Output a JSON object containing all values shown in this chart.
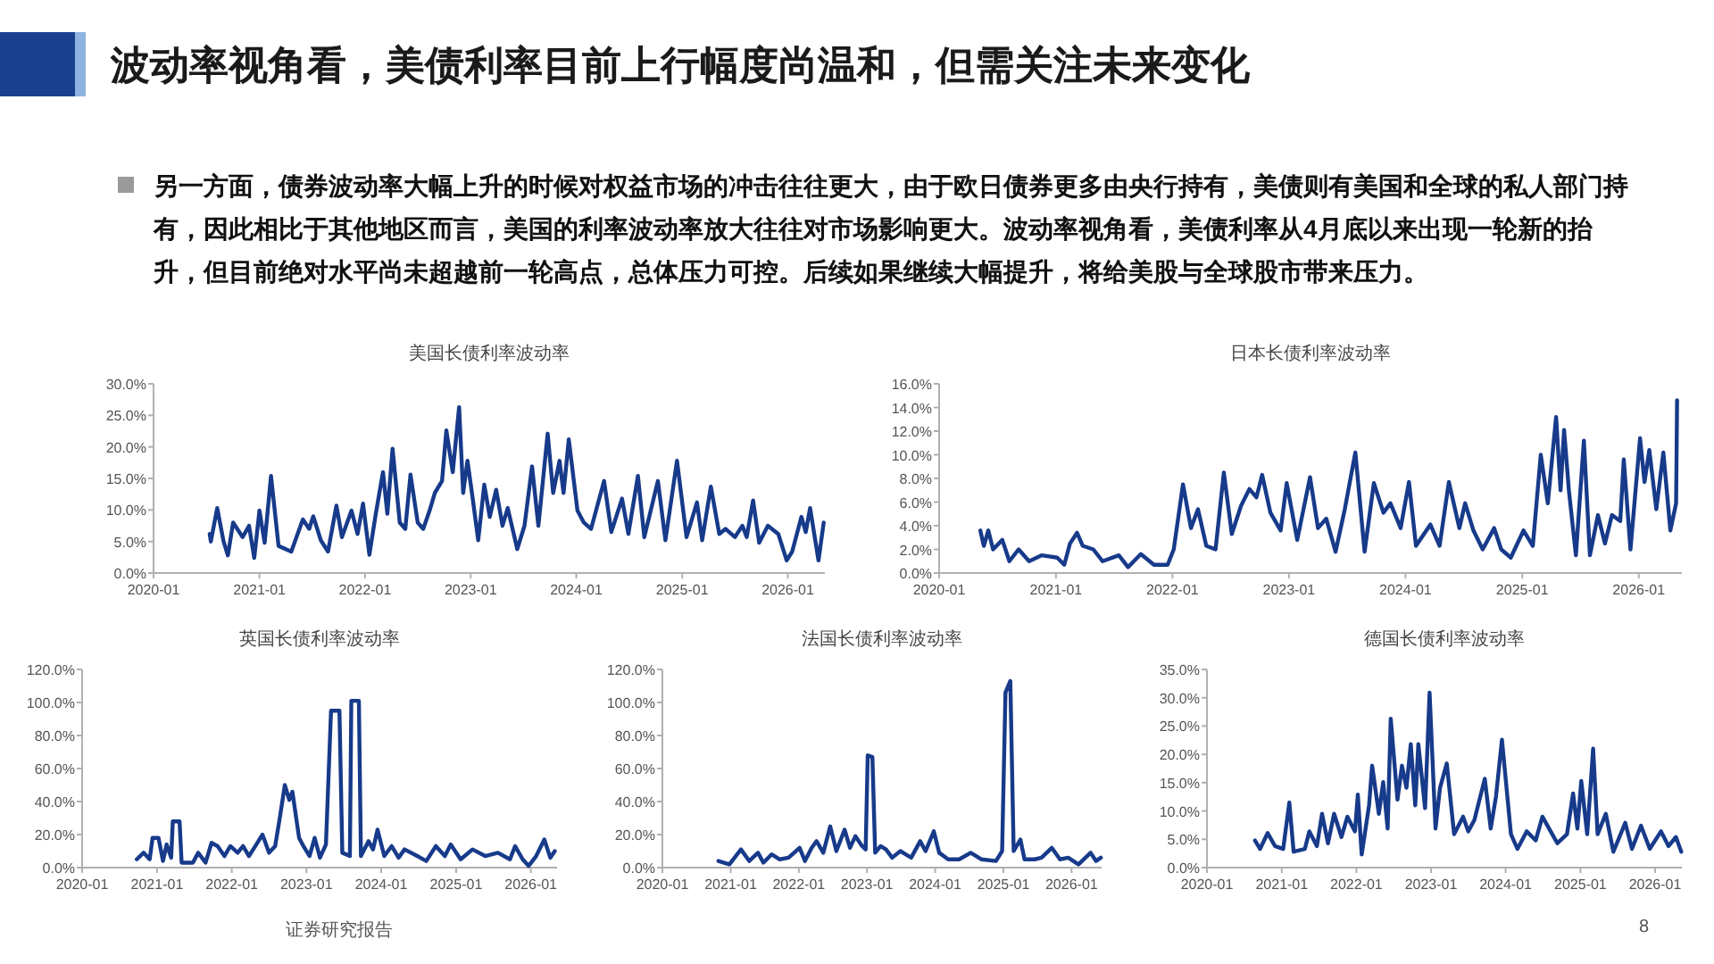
{
  "chart_data": [
    {
      "type": "other",
      "title": "波动率视角看，美债利率目前上行幅度尚温和，但需关注未来变化",
      "annotations": [
        "另一方面，债券波动率大幅上升的时候对权益市场的冲击往往更大，由于欧日债券更多由央行持有，美债则有美国和全球的私人部门持有，因此相比于其他地区而言，美国的利率波动率放大往往对市场影响更大。波动率视角看，美债利率从4月底以来出现一轮新的抬升，但目前绝对水平尚未超越前一轮高点，总体压力可控。后续如果继续大幅提升，将给美股与全球股市带来压力。",
        "证券研究报告",
        "8"
      ]
    },
    {
      "type": "line",
      "title": "美国长债利率波动率",
      "color": "#173a8a",
      "x": [
        "2020-07-13",
        "2020-07-17",
        "2020-08-08",
        "2020-08-30",
        "2020-09-14",
        "2020-10-02",
        "2020-11-04",
        "2020-11-26",
        "2020-12-14",
        "2021-01-01",
        "2021-01-19",
        "2021-02-10",
        "2021-03-08",
        "2021-04-21",
        "2021-05-31",
        "2021-06-22",
        "2021-07-06",
        "2021-08-01",
        "2021-08-26",
        "2021-09-24",
        "2021-10-13",
        "2021-11-15",
        "2021-12-06",
        "2021-12-25",
        "2022-01-16",
        "2022-02-07",
        "2022-03-04",
        "2022-03-19",
        "2022-04-06",
        "2022-05-01",
        "2022-05-20",
        "2022-06-07",
        "2022-07-02",
        "2022-07-21",
        "2022-08-12",
        "2022-08-30",
        "2022-09-24",
        "2022-10-09",
        "2022-10-31",
        "2022-11-22",
        "2022-12-06",
        "2022-12-21",
        "2023-01-08",
        "2023-01-27",
        "2023-02-17",
        "2023-03-08",
        "2023-03-30",
        "2023-04-21",
        "2023-05-09",
        "2023-06-11",
        "2023-07-06",
        "2023-08-01",
        "2023-08-23",
        "2023-09-24",
        "2023-10-13",
        "2023-11-04",
        "2023-11-18",
        "2023-12-06",
        "2024-01-05",
        "2024-01-27",
        "2024-02-21",
        "2024-04-06",
        "2024-05-01",
        "2024-06-07",
        "2024-06-29",
        "2024-08-01",
        "2024-08-23",
        "2024-10-09",
        "2024-11-04",
        "2024-12-14",
        "2025-01-16",
        "2025-02-21",
        "2025-03-11",
        "2025-04-10",
        "2025-05-09",
        "2025-05-31",
        "2025-07-02",
        "2025-07-28",
        "2025-08-12",
        "2025-09-03",
        "2025-09-24",
        "2025-10-24",
        "2025-11-29",
        "2025-12-28",
        "2026-01-16",
        "2026-02-17",
        "2026-03-04",
        "2026-03-19",
        "2026-04-17",
        "2026-05-05"
      ],
      "values": [
        6.2,
        5,
        10.3,
        5,
        2.8,
        8,
        5.7,
        7.5,
        2.4,
        9.9,
        4.8,
        15.4,
        4.3,
        3.4,
        8.5,
        7,
        9,
        5.2,
        3.4,
        10.7,
        5.7,
        9.9,
        6.2,
        11,
        2.9,
        9.4,
        16,
        9.4,
        19.7,
        8,
        7,
        15.6,
        8,
        7,
        9.9,
        12.7,
        14.6,
        22.6,
        16,
        26.3,
        12.7,
        17.8,
        11.8,
        5.2,
        14,
        8.9,
        13.2,
        7.5,
        10.3,
        3.8,
        7.5,
        16.9,
        7.5,
        22.1,
        12.7,
        17.8,
        12.7,
        21.2,
        9.9,
        8,
        7,
        14.6,
        6.5,
        11.8,
        6.2,
        15.4,
        5.7,
        14.6,
        5.2,
        17.8,
        5.7,
        11.2,
        5.2,
        13.7,
        6.2,
        7,
        5.7,
        7.5,
        5.7,
        11.5,
        4.8,
        7.5,
        6.2,
        2,
        3.4,
        8.9,
        6.5,
        10.3,
        2,
        8
      ],
      "xlim": [
        "2020-01-01",
        "2026-05-09"
      ],
      "xticks": [
        "2020-01",
        "2021-01",
        "2022-01",
        "2023-01",
        "2024-01",
        "2025-01",
        "2026-01"
      ],
      "ylim": [
        0,
        30
      ],
      "yticks": [
        {
          "value": 0,
          "label": "0.0%"
        },
        {
          "value": 5,
          "label": "5.0%"
        },
        {
          "value": 10,
          "label": "10.0%"
        },
        {
          "value": 15,
          "label": "15.0%"
        },
        {
          "value": 20,
          "label": "20.0%"
        },
        {
          "value": 25,
          "label": "25.0%"
        },
        {
          "value": 30,
          "label": "30.0%"
        }
      ]
    },
    {
      "type": "line",
      "title": "日本长债利率波动率",
      "color": "#173a8a",
      "x": [
        "2020-05-09",
        "2020-05-20",
        "2020-06-03",
        "2020-06-18",
        "2020-07-17",
        "2020-08-08",
        "2020-09-06",
        "2020-10-09",
        "2020-11-18",
        "2021-01-05",
        "2021-01-27",
        "2021-02-14",
        "2021-03-08",
        "2021-03-26",
        "2021-04-28",
        "2021-05-27",
        "2021-07-17",
        "2021-08-15",
        "2021-09-24",
        "2021-11-04",
        "2021-12-17",
        "2022-01-05",
        "2022-02-03",
        "2022-02-28",
        "2022-03-22",
        "2022-04-17",
        "2022-05-16",
        "2022-06-11",
        "2022-07-06",
        "2022-08-04",
        "2022-08-30",
        "2022-09-21",
        "2022-10-09",
        "2022-11-04",
        "2022-12-06",
        "2022-12-25",
        "2023-01-27",
        "2023-03-08",
        "2023-04-02",
        "2023-04-28",
        "2023-05-27",
        "2023-06-25",
        "2023-07-28",
        "2023-08-26",
        "2023-09-24",
        "2023-10-24",
        "2023-11-15",
        "2023-12-17",
        "2024-01-12",
        "2024-02-03",
        "2024-03-19",
        "2024-04-17",
        "2024-05-16",
        "2024-06-18",
        "2024-07-06",
        "2024-08-01",
        "2024-08-30",
        "2024-10-05",
        "2024-10-27",
        "2024-11-26",
        "2025-01-05",
        "2025-02-03",
        "2025-02-28",
        "2025-03-22",
        "2025-04-17",
        "2025-05-01",
        "2025-05-12",
        "2025-05-27",
        "2025-06-18",
        "2025-07-13",
        "2025-08-01",
        "2025-08-26",
        "2025-09-17",
        "2025-10-09",
        "2025-11-04",
        "2025-11-15",
        "2025-12-06",
        "2026-01-05",
        "2026-01-19",
        "2026-02-03",
        "2026-02-25",
        "2026-03-19",
        "2026-04-10",
        "2026-04-28",
        "2026-05-01"
      ],
      "values": [
        3.6,
        2.3,
        3.6,
        2,
        2.8,
        1,
        2,
        1,
        1.5,
        1.3,
        0.7,
        2.5,
        3.4,
        2.3,
        2,
        1,
        1.5,
        0.5,
        1.6,
        0.7,
        0.7,
        2,
        7.5,
        3.8,
        5.4,
        2.3,
        2,
        8.5,
        3.3,
        5.7,
        7.1,
        6.4,
        8.3,
        5.1,
        3.6,
        7.6,
        2.8,
        8.1,
        3.8,
        4.6,
        1.8,
        5.4,
        10.2,
        1.8,
        7.6,
        5.1,
        5.9,
        3.8,
        7.7,
        2.3,
        4.1,
        2.3,
        7.7,
        3.8,
        5.9,
        3.6,
        2,
        3.8,
        2,
        1.3,
        3.6,
        2.3,
        10,
        5.9,
        13.2,
        7,
        12.1,
        7,
        1.5,
        11.2,
        1.5,
        4.9,
        2.5,
        4.9,
        4.4,
        9.6,
        2,
        11.4,
        7.7,
        10.4,
        5.4,
        10.2,
        3.6,
        5.9,
        14.6
      ],
      "xlim": [
        "2020-01-01",
        "2026-05-16"
      ],
      "xticks": [
        "2020-01",
        "2021-01",
        "2022-01",
        "2023-01",
        "2024-01",
        "2025-01",
        "2026-01"
      ],
      "ylim": [
        0,
        16
      ],
      "yticks": [
        {
          "value": 0,
          "label": "0.0%"
        },
        {
          "value": 2,
          "label": "2.0%"
        },
        {
          "value": 4,
          "label": "4.0%"
        },
        {
          "value": 6,
          "label": "6.0%"
        },
        {
          "value": 8,
          "label": "8.0%"
        },
        {
          "value": 10,
          "label": "10.0%"
        },
        {
          "value": 12,
          "label": "12.0%"
        },
        {
          "value": 14,
          "label": "14.0%"
        },
        {
          "value": 16,
          "label": "16.0%"
        }
      ]
    },
    {
      "type": "line",
      "title": "英国长债利率波动率",
      "color": "#173a8a",
      "x": [
        "2020-09-24",
        "2020-10-27",
        "2020-11-26",
        "2020-12-10",
        "2021-01-08",
        "2021-01-30",
        "2021-02-17",
        "2021-03-11",
        "2021-03-19",
        "2021-04-21",
        "2021-05-01",
        "2021-06-25",
        "2021-07-21",
        "2021-08-26",
        "2021-09-24",
        "2021-10-24",
        "2021-11-26",
        "2021-12-25",
        "2022-01-30",
        "2022-02-25",
        "2022-03-26",
        "2022-05-01",
        "2022-05-31",
        "2022-07-02",
        "2022-08-01",
        "2022-08-26",
        "2022-09-17",
        "2022-10-09",
        "2022-10-24",
        "2022-11-26",
        "2022-12-17",
        "2023-01-16",
        "2023-02-10",
        "2023-03-08",
        "2023-04-06",
        "2023-05-01",
        "2023-06-11",
        "2023-06-25",
        "2023-08-01",
        "2023-08-08",
        "2023-09-14",
        "2023-09-24",
        "2023-10-31",
        "2023-11-22",
        "2023-12-14",
        "2024-01-16",
        "2024-02-21",
        "2024-03-26",
        "2024-04-24",
        "2024-06-25",
        "2024-08-08",
        "2024-09-24",
        "2024-11-07",
        "2024-12-06",
        "2025-01-23",
        "2025-03-22",
        "2025-05-23",
        "2025-07-24",
        "2025-09-21",
        "2025-10-16",
        "2025-11-22",
        "2025-12-21",
        "2026-01-27",
        "2026-03-08",
        "2026-04-06",
        "2026-04-28"
      ],
      "values": [
        5,
        9,
        5,
        18,
        18,
        4,
        14,
        6,
        28,
        28,
        3,
        3,
        9,
        3,
        15,
        13,
        7,
        13,
        9,
        13,
        7,
        14,
        20,
        9,
        13,
        32,
        50,
        41,
        46,
        18,
        13,
        7,
        18,
        6,
        14,
        95,
        95,
        9,
        7,
        101,
        101,
        7,
        16,
        11,
        23,
        7,
        13,
        6,
        11,
        7,
        4,
        13,
        7,
        14,
        5,
        11,
        7,
        9,
        5,
        13,
        5,
        1,
        7,
        17,
        6,
        10
      ],
      "xlim": [
        "2020-01-01",
        "2026-05-09"
      ],
      "xticks": [
        "2020-01",
        "2021-01",
        "2022-01",
        "2023-01",
        "2024-01",
        "2025-01",
        "2026-01"
      ],
      "ylim": [
        0,
        120
      ],
      "yticks": [
        {
          "value": 0,
          "label": "0.0%"
        },
        {
          "value": 20,
          "label": "20.0%"
        },
        {
          "value": 40,
          "label": "40.0%"
        },
        {
          "value": 60,
          "label": "60.0%"
        },
        {
          "value": 80,
          "label": "80.0%"
        },
        {
          "value": 100,
          "label": "100.0%"
        },
        {
          "value": 120,
          "label": "120.0%"
        }
      ]
    },
    {
      "type": "line",
      "title": "法国长债利率波动率",
      "color": "#173a8a",
      "x": [
        "2020-10-27",
        "2020-12-25",
        "2021-02-25",
        "2021-04-10",
        "2021-05-27",
        "2021-06-25",
        "2021-08-08",
        "2021-09-21",
        "2021-11-07",
        "2022-01-05",
        "2022-02-03",
        "2022-03-11",
        "2022-04-06",
        "2022-05-12",
        "2022-06-18",
        "2022-07-21",
        "2022-09-03",
        "2022-10-02",
        "2022-10-31",
        "2022-12-06",
        "2022-12-25",
        "2023-01-05",
        "2023-01-30",
        "2023-02-14",
        "2023-03-15",
        "2023-04-13",
        "2023-05-16",
        "2023-06-29",
        "2023-08-26",
        "2023-10-13",
        "2023-11-11",
        "2023-12-25",
        "2024-01-23",
        "2024-03-11",
        "2024-05-09",
        "2024-07-10",
        "2024-09-06",
        "2024-11-22",
        "2024-12-25",
        "2025-01-12",
        "2025-02-07",
        "2025-02-25",
        "2025-04-02",
        "2025-04-24",
        "2025-06-18",
        "2025-07-24",
        "2025-09-17",
        "2025-10-31",
        "2025-12-14",
        "2026-02-07",
        "2026-04-13",
        "2026-05-12",
        "2026-06-07"
      ],
      "values": [
        4,
        2,
        11,
        4,
        9,
        3,
        8,
        5,
        6,
        12,
        4,
        12,
        16,
        9,
        25,
        10,
        23,
        12,
        19,
        13,
        11,
        68,
        67,
        9,
        13,
        11,
        6,
        10,
        6,
        16,
        10,
        22,
        9,
        5,
        5,
        9,
        5,
        4,
        10,
        106,
        113,
        10,
        17,
        5,
        5,
        6,
        12,
        5,
        6,
        2,
        9,
        4,
        6
      ],
      "xlim": [
        "2020-01-01",
        "2026-06-11"
      ],
      "xticks": [
        "2020-01",
        "2021-01",
        "2022-01",
        "2023-01",
        "2024-01",
        "2025-01",
        "2026-01"
      ],
      "ylim": [
        0,
        120
      ],
      "yticks": [
        {
          "value": 0,
          "label": "0.0%"
        },
        {
          "value": 20,
          "label": "20.0%"
        },
        {
          "value": 40,
          "label": "40.0%"
        },
        {
          "value": 60,
          "label": "60.0%"
        },
        {
          "value": 80,
          "label": "80.0%"
        },
        {
          "value": 100,
          "label": "100.0%"
        },
        {
          "value": 120,
          "label": "120.0%"
        }
      ]
    },
    {
      "type": "line",
      "title": "德国长债利率波动率",
      "color": "#173a8a",
      "x": [
        "2020-08-23",
        "2020-09-17",
        "2020-10-24",
        "2020-11-29",
        "2021-01-08",
        "2021-02-07",
        "2021-02-28",
        "2021-04-24",
        "2021-05-16",
        "2021-06-22",
        "2021-07-17",
        "2021-08-15",
        "2021-09-14",
        "2021-10-20",
        "2021-11-18",
        "2021-12-25",
        "2022-01-08",
        "2022-01-27",
        "2022-03-04",
        "2022-03-19",
        "2022-04-21",
        "2022-05-12",
        "2022-06-03",
        "2022-06-18",
        "2022-07-21",
        "2022-08-12",
        "2022-09-03",
        "2022-09-24",
        "2022-10-16",
        "2022-10-31",
        "2022-12-03",
        "2022-12-25",
        "2023-01-23",
        "2023-02-14",
        "2023-03-19",
        "2023-04-24",
        "2023-06-07",
        "2023-07-02",
        "2023-08-01",
        "2023-09-21",
        "2023-10-20",
        "2023-11-15",
        "2023-12-14",
        "2024-01-27",
        "2024-02-28",
        "2024-04-13",
        "2024-05-27",
        "2024-06-29",
        "2024-08-08",
        "2024-09-10",
        "2024-10-27",
        "2024-11-26",
        "2024-12-17",
        "2025-01-05",
        "2025-02-03",
        "2025-03-04",
        "2025-03-26",
        "2025-05-05",
        "2025-06-11",
        "2025-08-08",
        "2025-09-10",
        "2025-10-24",
        "2025-12-06",
        "2026-01-30",
        "2026-03-08",
        "2026-04-13",
        "2026-05-09"
      ],
      "values": [
        4.8,
        3.3,
        6.1,
        3.8,
        3.3,
        11.5,
        2.8,
        3.3,
        6.4,
        3.8,
        9.5,
        4.3,
        9.5,
        5.4,
        9,
        6.4,
        12.9,
        2.3,
        11,
        18,
        9.5,
        15.1,
        6.9,
        26.3,
        12,
        18,
        14.1,
        21.8,
        11,
        21.8,
        10.5,
        30.9,
        6.9,
        14.1,
        18.4,
        5.9,
        9,
        6.4,
        8.4,
        15.7,
        6.9,
        12.6,
        22.6,
        5.9,
        3.3,
        6.4,
        4.8,
        9,
        6.4,
        4.3,
        5.9,
        13.1,
        6.9,
        15.3,
        5.9,
        21,
        5.9,
        9.5,
        2.8,
        7.9,
        3.3,
        7.4,
        3.3,
        6.4,
        3.8,
        5.4,
        2.8
      ],
      "xlim": [
        "2020-01-01",
        "2026-05-12"
      ],
      "xticks": [
        "2020-01",
        "2021-01",
        "2022-01",
        "2023-01",
        "2024-01",
        "2025-01",
        "2026-01"
      ],
      "ylim": [
        0,
        35
      ],
      "yticks": [
        {
          "value": 0,
          "label": "0.0%"
        },
        {
          "value": 5,
          "label": "5.0%"
        },
        {
          "value": 10,
          "label": "10.0%"
        },
        {
          "value": 15,
          "label": "15.0%"
        },
        {
          "value": 20,
          "label": "20.0%"
        },
        {
          "value": 25,
          "label": "25.0%"
        },
        {
          "value": 30,
          "label": "30.0%"
        },
        {
          "value": 35,
          "label": "35.0%"
        }
      ]
    }
  ]
}
